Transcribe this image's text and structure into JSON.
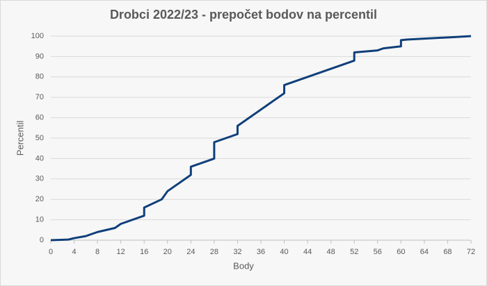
{
  "chart_data": {
    "type": "line",
    "title": "Drobci 2022/23 - prepočet bodov na percentil",
    "x_label": "Body",
    "y_label": "Percentil",
    "x": [
      0,
      3,
      4,
      6,
      8,
      11,
      12,
      16,
      16,
      19,
      20,
      24,
      24,
      28,
      28,
      32,
      32,
      40,
      40,
      52,
      52,
      56,
      57,
      60,
      60,
      61,
      69,
      72
    ],
    "series": [
      {
        "name": "Percentil",
        "color": "#0f3f7a",
        "values": [
          0,
          0.3,
          1,
          2,
          4,
          6,
          8,
          12,
          16,
          20,
          24,
          32,
          36,
          40,
          48,
          52,
          56,
          72,
          76,
          88,
          92,
          93,
          94,
          95,
          98,
          98.3,
          99.5,
          100
        ]
      }
    ],
    "xlim": [
      0,
      72
    ],
    "xticks": [
      0,
      4,
      8,
      12,
      16,
      20,
      24,
      28,
      32,
      36,
      40,
      44,
      48,
      52,
      56,
      60,
      64,
      68,
      72
    ],
    "ylim": [
      0,
      100
    ],
    "yticks": [
      0,
      10,
      20,
      30,
      40,
      50,
      60,
      70,
      80,
      90,
      100
    ],
    "grid": true
  }
}
